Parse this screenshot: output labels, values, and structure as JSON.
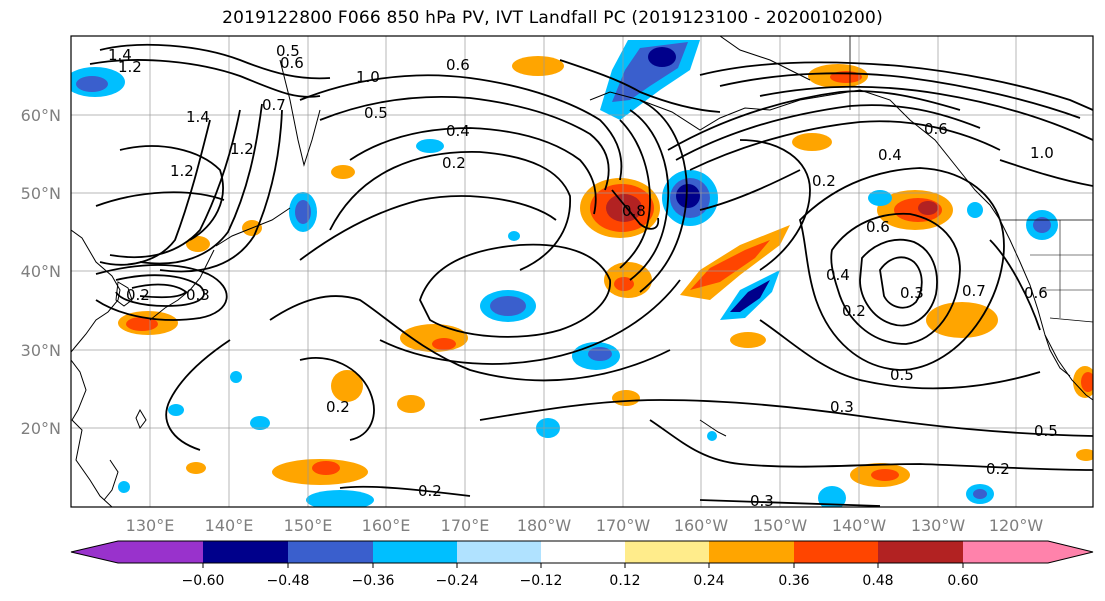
{
  "title": "2019122800 F066 850 hPa PV, IVT Landfall PC (2019123100 - 2020010200)",
  "latitude_labels": [
    "60°N",
    "50°N",
    "40°N",
    "30°N",
    "20°N"
  ],
  "longitude_labels": [
    "130°E",
    "140°E",
    "150°E",
    "160°E",
    "170°E",
    "180°W",
    "170°W",
    "160°W",
    "150°W",
    "140°W",
    "130°W",
    "120°W"
  ],
  "colorbar": {
    "colors": [
      "#9932cc",
      "#00008b",
      "#3a5fcd",
      "#00bfff",
      "#b0e2ff",
      "#ffffff",
      "#ffffff",
      "#ffec8b",
      "#ffa500",
      "#ff4500",
      "#b22222",
      "#ff82ab"
    ],
    "tick_labels": [
      "−0.60",
      "−0.48",
      "−0.36",
      "−0.24",
      "−0.12",
      "0.12",
      "0.24",
      "0.36",
      "0.48",
      "0.60"
    ]
  },
  "contour_labels": [
    "1.4",
    "1.2",
    "0.5",
    "0.6",
    "0.6",
    "1.0",
    "0.7",
    "1.4",
    "0.5",
    "1.2",
    "0.4",
    "0.2",
    "1.2",
    "0.8",
    "0.6",
    "0.4",
    "0.2",
    "0.7",
    "0.6",
    "1.0",
    "0.4",
    "0.2",
    "0.3",
    "0.5",
    "0.3",
    "0.5",
    "0.2",
    "0.2",
    "0.2",
    "0.3",
    "0.6",
    "0.2",
    "0.3"
  ]
}
